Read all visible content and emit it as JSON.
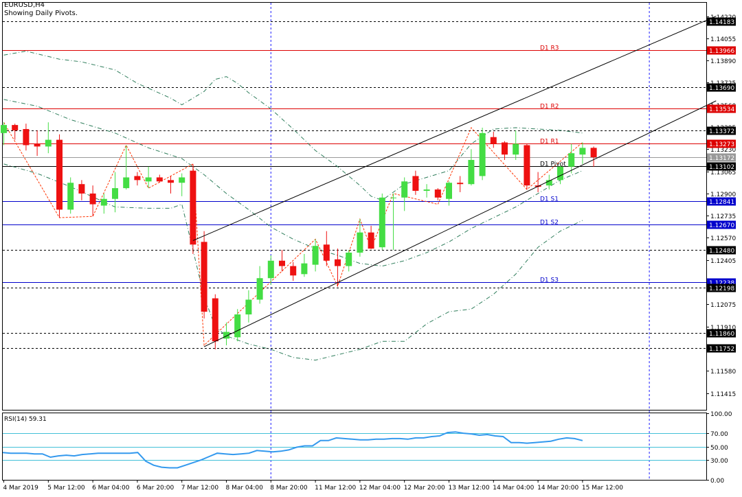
{
  "header": {
    "symbol": "EURUSD,H4",
    "subtitle": "Showing Daily Pivots."
  },
  "colors": {
    "bull": "#44dd44",
    "bear": "#ee1111",
    "resistance": "#dd0000",
    "support": "#0000cc",
    "pivot": "#000000",
    "grid": "#000000",
    "bollinger": "#2e7d5b",
    "zigzag": "#ff3300",
    "rsi_line": "#3399ee",
    "rsi_levels": "#41c0d8",
    "separator": "#1a1aff"
  },
  "chart_data": [
    {
      "type": "candlestick",
      "ylim": [
        1.1129,
        1.1432
      ],
      "y_tick_labels": [
        "1.14220",
        "1.14055",
        "1.13890",
        "1.13725",
        "1.13560",
        "1.13395",
        "1.13230",
        "1.13065",
        "1.12900",
        "1.12735",
        "1.12570",
        "1.12405",
        "1.12240",
        "1.12075",
        "1.11910",
        "1.11745",
        "1.11580",
        "1.11415"
      ],
      "x_tick_labels": [
        {
          "label": "4 Mar 2019",
          "bar": 0
        },
        {
          "label": "5 Mar 12:00",
          "bar": 4
        },
        {
          "label": "6 Mar 04:00",
          "bar": 8
        },
        {
          "label": "6 Mar 20:00",
          "bar": 12
        },
        {
          "label": "7 Mar 12:00",
          "bar": 16
        },
        {
          "label": "8 Mar 04:00",
          "bar": 20
        },
        {
          "label": "8 Mar 20:00",
          "bar": 24
        },
        {
          "label": "11 Mar 12:00",
          "bar": 28
        },
        {
          "label": "12 Mar 04:00",
          "bar": 32
        },
        {
          "label": "12 Mar 20:00",
          "bar": 36
        },
        {
          "label": "13 Mar 12:00",
          "bar": 40
        },
        {
          "label": "14 Mar 04:00",
          "bar": 44
        },
        {
          "label": "14 Mar 20:00",
          "bar": 48
        },
        {
          "label": "15 Mar 12:00",
          "bar": 52
        }
      ],
      "ohlc": [
        [
          1.1335,
          1.1343,
          1.1326,
          1.1341
        ],
        [
          1.1341,
          1.1342,
          1.133,
          1.1337
        ],
        [
          1.1338,
          1.1342,
          1.1322,
          1.1326
        ],
        [
          1.1327,
          1.1337,
          1.1318,
          1.1325
        ],
        [
          1.1325,
          1.1343,
          1.132,
          1.133
        ],
        [
          1.133,
          1.1334,
          1.1272,
          1.1278
        ],
        [
          1.1278,
          1.1302,
          1.1275,
          1.1298
        ],
        [
          1.1297,
          1.13,
          1.1285,
          1.129
        ],
        [
          1.129,
          1.1296,
          1.1273,
          1.1282
        ],
        [
          1.1281,
          1.129,
          1.1275,
          1.1286
        ],
        [
          1.1286,
          1.1306,
          1.1276,
          1.1294
        ],
        [
          1.1294,
          1.1326,
          1.1293,
          1.1302
        ],
        [
          1.1303,
          1.1306,
          1.1296,
          1.13
        ],
        [
          1.1299,
          1.131,
          1.1294,
          1.1302
        ],
        [
          1.1302,
          1.1304,
          1.1298,
          1.1299
        ],
        [
          1.13,
          1.1303,
          1.129,
          1.1298
        ],
        [
          1.1298,
          1.1305,
          1.1288,
          1.1302
        ],
        [
          1.1307,
          1.1312,
          1.1245,
          1.1252
        ],
        [
          1.1254,
          1.1262,
          1.1197,
          1.1202
        ],
        [
          1.1212,
          1.1215,
          1.1174,
          1.118
        ],
        [
          1.1182,
          1.1194,
          1.1177,
          1.1187
        ],
        [
          1.1183,
          1.1204,
          1.118,
          1.12
        ],
        [
          1.12,
          1.1218,
          1.1194,
          1.1211
        ],
        [
          1.1211,
          1.1236,
          1.1208,
          1.1227
        ],
        [
          1.1227,
          1.1244,
          1.1222,
          1.124
        ],
        [
          1.124,
          1.1248,
          1.1232,
          1.1236
        ],
        [
          1.1236,
          1.1239,
          1.1225,
          1.1229
        ],
        [
          1.123,
          1.1245,
          1.1228,
          1.1238
        ],
        [
          1.1237,
          1.1256,
          1.1232,
          1.1251
        ],
        [
          1.1252,
          1.1262,
          1.1236,
          1.124
        ],
        [
          1.1241,
          1.1249,
          1.1221,
          1.1236
        ],
        [
          1.1236,
          1.1248,
          1.1232,
          1.1246
        ],
        [
          1.1246,
          1.1271,
          1.1243,
          1.1261
        ],
        [
          1.1261,
          1.1266,
          1.1249,
          1.1249
        ],
        [
          1.125,
          1.129,
          1.1248,
          1.1287
        ],
        [
          1.1287,
          1.129,
          1.1248,
          1.1287
        ],
        [
          1.1287,
          1.1302,
          1.1277,
          1.1299
        ],
        [
          1.1303,
          1.1307,
          1.1289,
          1.1292
        ],
        [
          1.1292,
          1.1297,
          1.1287,
          1.1293
        ],
        [
          1.1293,
          1.1294,
          1.1285,
          1.1287
        ],
        [
          1.1286,
          1.1299,
          1.1281,
          1.1298
        ],
        [
          1.1298,
          1.1303,
          1.1291,
          1.1297
        ],
        [
          1.1297,
          1.1323,
          1.1296,
          1.1315
        ],
        [
          1.1303,
          1.1339,
          1.13,
          1.1335
        ],
        [
          1.1332,
          1.1336,
          1.1324,
          1.1327
        ],
        [
          1.1328,
          1.1329,
          1.1315,
          1.1319
        ],
        [
          1.1319,
          1.1337,
          1.1315,
          1.1327
        ],
        [
          1.1326,
          1.1327,
          1.1293,
          1.1296
        ],
        [
          1.1296,
          1.1306,
          1.1291,
          1.1295
        ],
        [
          1.1296,
          1.1304,
          1.1293,
          1.13
        ],
        [
          1.13,
          1.1311,
          1.1297,
          1.131
        ],
        [
          1.131,
          1.1327,
          1.1305,
          1.132
        ],
        [
          1.1319,
          1.1328,
          1.1312,
          1.1324
        ],
        [
          1.1324,
          1.1325,
          1.131,
          1.1317
        ]
      ],
      "levels": [
        {
          "kind": "grid",
          "value": 1.14183,
          "label": "1.14183"
        },
        {
          "kind": "resistance",
          "value": 1.13966,
          "label": "1.13966",
          "name": "D1  R3"
        },
        {
          "kind": "grid",
          "value": 1.1369,
          "label": "1.13690"
        },
        {
          "kind": "resistance",
          "value": 1.13534,
          "label": "1.13534",
          "name": "D1  R2"
        },
        {
          "kind": "grid",
          "value": 1.13372,
          "label": "1.13372"
        },
        {
          "kind": "resistance",
          "value": 1.13273,
          "label": "1.13273",
          "name": "D1  R1"
        },
        {
          "kind": "current",
          "value": 1.13172,
          "label": "1.13172"
        },
        {
          "kind": "pivot",
          "value": 1.13102,
          "label": "1.13102",
          "name": "D1  Pivot"
        },
        {
          "kind": "support",
          "value": 1.12841,
          "label": "1.12841",
          "name": "D1  S1"
        },
        {
          "kind": "support",
          "value": 1.1267,
          "label": "1.12670",
          "name": "D1  S2"
        },
        {
          "kind": "grid",
          "value": 1.1248,
          "label": "1.12480"
        },
        {
          "kind": "support",
          "value": 1.12238,
          "label": "1.12238",
          "name": "D1  S3"
        },
        {
          "kind": "grid",
          "value": 1.12198,
          "label": "1.12198"
        },
        {
          "kind": "grid",
          "value": 1.1186,
          "label": "1.11860"
        },
        {
          "kind": "grid",
          "value": 1.11752,
          "label": "1.11752"
        }
      ],
      "trendlines": [
        {
          "from": [
            17,
            1.1255
          ],
          "to": [
            64,
            1.1422
          ]
        },
        {
          "from": [
            18,
            1.1176
          ],
          "to": [
            64,
            1.1359
          ]
        }
      ],
      "zigzag": [
        [
          0,
          1.1343
        ],
        [
          5,
          1.1272
        ],
        [
          8,
          1.1273
        ],
        [
          11,
          1.1326
        ],
        [
          13,
          1.1294
        ],
        [
          17,
          1.1312
        ],
        [
          18,
          1.1177
        ],
        [
          28,
          1.1256
        ],
        [
          30,
          1.1221
        ],
        [
          32,
          1.1271
        ],
        [
          33,
          1.1249
        ],
        [
          35,
          1.129
        ],
        [
          39,
          1.1282
        ],
        [
          42,
          1.1339
        ],
        [
          47,
          1.1293
        ],
        [
          52,
          1.1328
        ]
      ],
      "bollinger": {
        "upper": [
          [
            0,
            1.1393
          ],
          [
            2,
            1.1396
          ],
          [
            5,
            1.139
          ],
          [
            7,
            1.1388
          ],
          [
            10,
            1.1382
          ],
          [
            12,
            1.1372
          ],
          [
            15,
            1.1361
          ],
          [
            16,
            1.1356
          ],
          [
            17,
            1.1361
          ],
          [
            18,
            1.1366
          ],
          [
            19,
            1.1375
          ],
          [
            20,
            1.1377
          ],
          [
            21,
            1.1372
          ],
          [
            22,
            1.1365
          ],
          [
            24,
            1.1353
          ],
          [
            26,
            1.1338
          ],
          [
            28,
            1.1322
          ],
          [
            30,
            1.131
          ],
          [
            32,
            1.1296
          ],
          [
            33,
            1.1288
          ],
          [
            34,
            1.1285
          ],
          [
            36,
            1.1297
          ],
          [
            38,
            1.1302
          ],
          [
            40,
            1.1307
          ],
          [
            42,
            1.1327
          ],
          [
            44,
            1.1338
          ],
          [
            46,
            1.1339
          ],
          [
            48,
            1.1338
          ],
          [
            50,
            1.1337
          ],
          [
            52,
            1.1335
          ]
        ],
        "middle": [
          [
            0,
            1.136
          ],
          [
            3,
            1.1355
          ],
          [
            6,
            1.1345
          ],
          [
            10,
            1.1335
          ],
          [
            13,
            1.1324
          ],
          [
            16,
            1.1316
          ],
          [
            18,
            1.1304
          ],
          [
            20,
            1.129
          ],
          [
            22,
            1.1278
          ],
          [
            24,
            1.1265
          ],
          [
            26,
            1.1256
          ],
          [
            28,
            1.1249
          ],
          [
            30,
            1.1244
          ],
          [
            32,
            1.1238
          ],
          [
            34,
            1.1236
          ],
          [
            36,
            1.124
          ],
          [
            38,
            1.1246
          ],
          [
            40,
            1.1254
          ],
          [
            42,
            1.1264
          ],
          [
            44,
            1.1272
          ],
          [
            46,
            1.128
          ],
          [
            48,
            1.129
          ],
          [
            50,
            1.13
          ],
          [
            52,
            1.1307
          ]
        ],
        "lower": [
          [
            0,
            1.1312
          ],
          [
            3,
            1.1305
          ],
          [
            6,
            1.1295
          ],
          [
            10,
            1.128
          ],
          [
            13,
            1.1279
          ],
          [
            15,
            1.1279
          ],
          [
            16,
            1.1282
          ],
          [
            17,
            1.1248
          ],
          [
            18,
            1.1213
          ],
          [
            19,
            1.1191
          ],
          [
            20,
            1.1184
          ],
          [
            22,
            1.1178
          ],
          [
            24,
            1.1174
          ],
          [
            26,
            1.1168
          ],
          [
            28,
            1.1166
          ],
          [
            30,
            1.117
          ],
          [
            32,
            1.1174
          ],
          [
            34,
            1.118
          ],
          [
            36,
            1.118
          ],
          [
            38,
            1.1193
          ],
          [
            40,
            1.1202
          ],
          [
            42,
            1.1204
          ],
          [
            44,
            1.1215
          ],
          [
            46,
            1.123
          ],
          [
            48,
            1.125
          ],
          [
            50,
            1.1262
          ],
          [
            52,
            1.127
          ]
        ]
      },
      "separators": [
        24,
        58
      ]
    },
    {
      "type": "line",
      "title": "RSI(14) 59.31",
      "ylim": [
        0,
        100
      ],
      "y_tick_labels": [
        "100.00",
        "70.00",
        "50.00",
        "30.00",
        "0.00"
      ],
      "levels": [
        70,
        50,
        30
      ],
      "values": [
        41,
        40,
        40,
        40,
        39,
        39,
        34,
        36,
        37,
        36,
        38,
        39,
        40,
        40,
        40,
        40,
        40,
        41,
        28,
        22,
        19,
        18,
        18,
        22,
        26,
        30,
        35,
        40,
        39,
        38,
        39,
        40,
        44,
        43,
        42,
        43,
        45,
        49,
        51,
        51,
        59,
        59,
        63,
        62,
        61,
        60,
        60,
        61,
        61,
        62,
        62,
        61,
        63,
        63,
        65,
        66,
        71,
        72,
        70,
        69,
        67,
        68,
        66,
        65,
        56,
        56,
        55,
        56,
        57,
        58,
        61,
        63,
        62,
        59
      ]
    }
  ]
}
